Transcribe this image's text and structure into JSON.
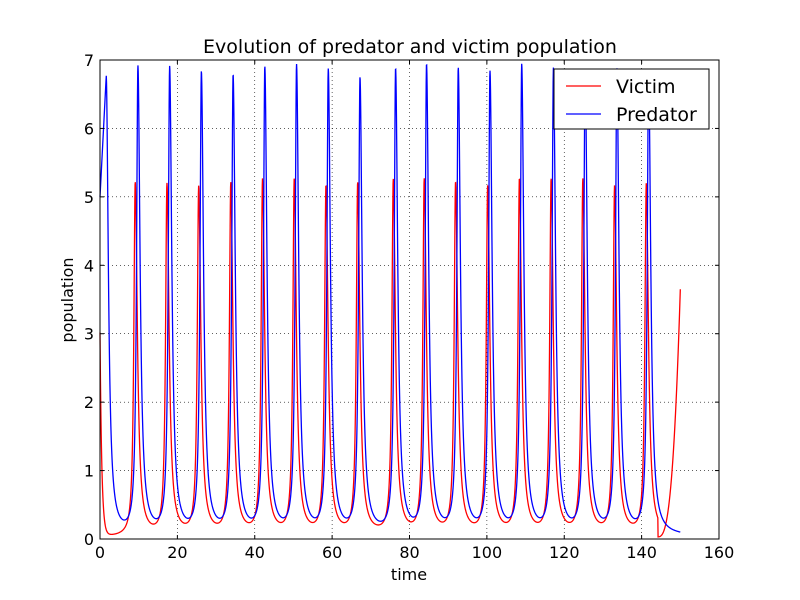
{
  "chart_data": {
    "type": "line",
    "title": "Evolution of predator and victim population",
    "xlabel": "time",
    "ylabel": "population",
    "xlim": [
      0,
      160
    ],
    "ylim": [
      0,
      7
    ],
    "xticks": [
      0,
      20,
      40,
      60,
      80,
      100,
      120,
      140,
      160
    ],
    "yticks": [
      0,
      1,
      2,
      3,
      4,
      5,
      6,
      7
    ],
    "grid": true,
    "grid_style": "dotted",
    "legend_position": "top-right",
    "x_end": 150,
    "series": [
      {
        "name": "Victim",
        "color": "#ff0000",
        "start_value": 3.0,
        "end_value": 3.65,
        "peaks": [
          {
            "x": 9.1,
            "y": 5.2
          },
          {
            "x": 17.3,
            "y": 5.15
          },
          {
            "x": 25.5,
            "y": 5.1
          },
          {
            "x": 33.8,
            "y": 5.15
          },
          {
            "x": 42.0,
            "y": 5.2
          },
          {
            "x": 50.2,
            "y": 5.2
          },
          {
            "x": 58.4,
            "y": 5.1
          },
          {
            "x": 66.6,
            "y": 5.15
          },
          {
            "x": 75.8,
            "y": 5.2
          },
          {
            "x": 83.8,
            "y": 5.2
          },
          {
            "x": 91.9,
            "y": 5.15
          },
          {
            "x": 100.2,
            "y": 5.1
          },
          {
            "x": 108.4,
            "y": 5.2
          },
          {
            "x": 116.6,
            "y": 5.2
          },
          {
            "x": 124.8,
            "y": 5.2
          },
          {
            "x": 133.0,
            "y": 5.1
          },
          {
            "x": 141.2,
            "y": 5.15
          }
        ]
      },
      {
        "name": "Predator",
        "color": "#0000ff",
        "start_value": 5.0,
        "end_value": 0.05,
        "peaks": [
          {
            "x": 1.6,
            "y": 6.75
          },
          {
            "x": 9.8,
            "y": 6.85
          },
          {
            "x": 18.0,
            "y": 6.83
          },
          {
            "x": 26.2,
            "y": 6.75
          },
          {
            "x": 34.4,
            "y": 6.7
          },
          {
            "x": 42.6,
            "y": 6.82
          },
          {
            "x": 50.8,
            "y": 6.85
          },
          {
            "x": 59.0,
            "y": 6.78
          },
          {
            "x": 67.2,
            "y": 6.66
          },
          {
            "x": 76.4,
            "y": 6.8
          },
          {
            "x": 84.4,
            "y": 6.85
          },
          {
            "x": 92.6,
            "y": 6.8
          },
          {
            "x": 100.8,
            "y": 6.75
          },
          {
            "x": 109.0,
            "y": 6.85
          },
          {
            "x": 117.2,
            "y": 6.8
          },
          {
            "x": 125.4,
            "y": 6.75
          },
          {
            "x": 133.6,
            "y": 6.8
          },
          {
            "x": 141.8,
            "y": 6.78
          }
        ]
      }
    ]
  }
}
